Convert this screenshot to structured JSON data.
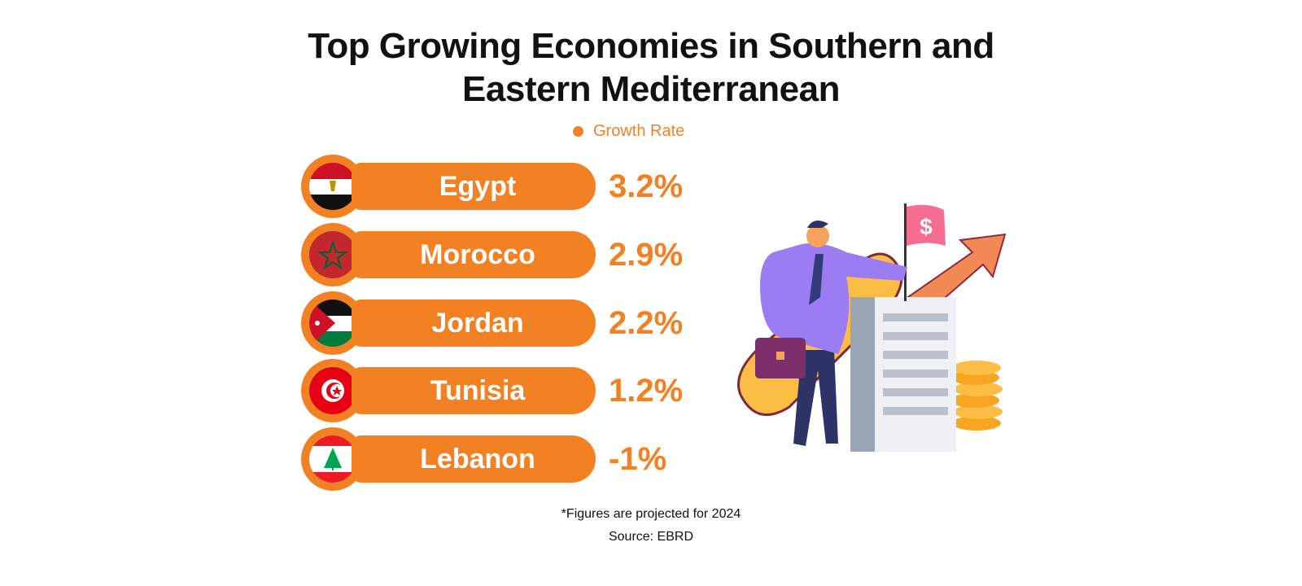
{
  "title_line1": "Top Growing Economies in Southern and",
  "title_line2": "Eastern Mediterranean",
  "legend": {
    "label": "Growth Rate",
    "color": "#f28123"
  },
  "chart_data": {
    "type": "table",
    "title": "Top Growing Economies in Southern and Eastern Mediterranean",
    "categories": [
      "Egypt",
      "Morocco",
      "Jordan",
      "Tunisia",
      "Lebanon"
    ],
    "series": [
      {
        "name": "Growth Rate",
        "values": [
          3.2,
          2.9,
          2.2,
          1.2,
          -1
        ]
      }
    ],
    "labels": [
      "3.2%",
      "2.9%",
      "2.2%",
      "1.2%",
      "-1%"
    ],
    "flags": [
      "egypt-flag",
      "morocco-flag",
      "jordan-flag",
      "tunisia-flag",
      "lebanon-flag"
    ]
  },
  "footnote": "*Figures are projected for 2024",
  "source": "Source: EBRD",
  "colors": {
    "accent": "#f28123",
    "title": "#111111"
  }
}
